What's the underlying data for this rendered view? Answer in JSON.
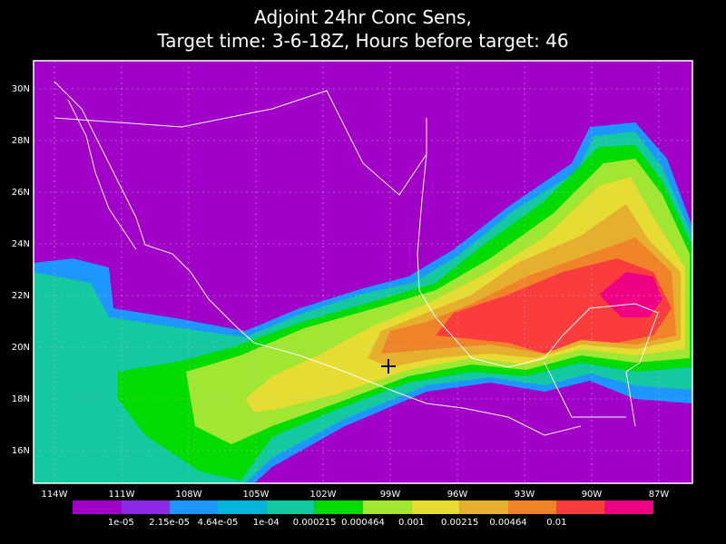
{
  "title": {
    "line1": "Adjoint 24hr Conc Sens,",
    "line2": "Target time: 3-6-18Z, Hours before target: 46"
  },
  "map": {
    "lat_labels": [
      "30N",
      "28N",
      "26N",
      "24N",
      "22N",
      "20N",
      "18N",
      "16N"
    ],
    "lon_labels": [
      "114W",
      "111W",
      "108W",
      "105W",
      "102W",
      "99W",
      "96W",
      "93W",
      "90W",
      "87W"
    ]
  },
  "colorbar": {
    "colors": [
      "#a000c8",
      "#8c28e6",
      "#1e96ff",
      "#00b4dc",
      "#14c8a0",
      "#00dc00",
      "#a0e632",
      "#e6dc32",
      "#e6af2d",
      "#f08228",
      "#fa3c3c",
      "#f00082"
    ],
    "labels": [
      "1e-05",
      "2.15e-05",
      "4.64e-05",
      "1e-04",
      "0.000215",
      "0.000464",
      "0.001",
      "0.00215",
      "0.00464",
      "0.01"
    ]
  }
}
